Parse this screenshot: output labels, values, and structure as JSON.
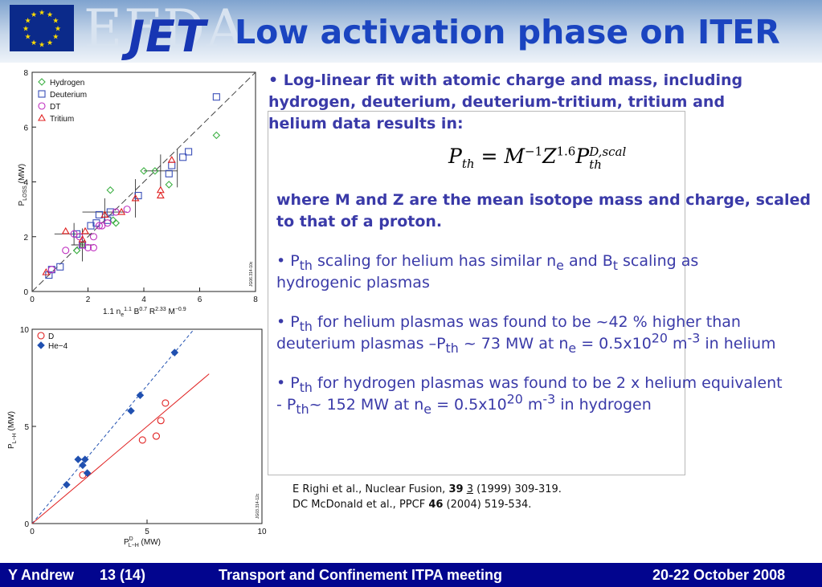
{
  "header": {
    "logo_efda": "EFDA",
    "logo_jet": "JET",
    "title": "Low activation phase on ITER"
  },
  "colors": {
    "title": "#1a44c0",
    "body_text": "#3a3aa8",
    "footer_bg": "#02058e",
    "hydrogen": "#3cb043",
    "deuterium": "#3a4fb8",
    "dt": "#c030c0",
    "tritium": "#e02020",
    "he4": "#2050b0"
  },
  "bullets": {
    "b1": "• Log-linear fit with atomic charge and mass, including hydrogen, deuterium, deuterium-tritium, tritium and helium data results in:",
    "formula": {
      "lhs": "P",
      "lhs_sub": "th",
      "eq": "=",
      "m": "M",
      "m_exp": "−1",
      "z": "Z",
      "z_exp": "1.6",
      "p": "P",
      "p_sup": "D,scal",
      "p_sub": "th"
    },
    "b2": "where M and Z are the mean isotope mass and charge, scaled to that of a proton.",
    "b3": {
      "bullet": "• P",
      "sub_th": "th",
      "t1": " scaling for helium has similar n",
      "sub_e": "e",
      "t2": " and B",
      "sub_t": "t",
      "t3": " scaling as hydrogenic plasmas"
    },
    "b4": {
      "bullet": "• P",
      "sub_th": "th",
      "t1": " for helium plasmas was found to be ~42 % higher than deuterium plasmas –P",
      "sub_th2": "th",
      "t2": " ~ 73 MW at n",
      "sub_e": "e",
      "t3": " = 0.5x10",
      "sup_20": "20",
      "t4": " m",
      "sup_m3": "-3",
      "t5": " in helium"
    },
    "b5": {
      "bullet": "• P",
      "sub_th": "th",
      "t1": " for hydrogen plasmas was found to be 2 x helium equivalent - P",
      "sub_th2": "th",
      "t2": "~ 152 MW at n",
      "sub_e": "e",
      "t3": " = 0.5x10",
      "sup_20": "20",
      "t4": " m",
      "sup_m3": "-3",
      "t5": " in hydrogen"
    }
  },
  "refs": {
    "r1_a": "E Righi et al., Nuclear Fusion, ",
    "r1_vol": "39",
    "r1_issue": "3",
    "r1_b": " (1999) 309-319.",
    "r2_a": "DC McDonald et al., PPCF ",
    "r2_vol": "46",
    "r2_b": " (2004) 519-534."
  },
  "footer": {
    "author": "Y Andrew",
    "page": "13 (14)",
    "meeting": "Transport and Confinement ITPA meeting",
    "date": "20-22 October 2008"
  },
  "chart_data": [
    {
      "type": "scatter",
      "xlabel": "1.1 n",
      "xlabel_sub1": "e",
      "xlabel_sup1": "1.1",
      "xlabel_b": " B",
      "xlabel_sup2": "0.7",
      "xlabel_c": " R",
      "xlabel_sup3": "2.33",
      "xlabel_d": " M",
      "xlabel_sup4": "−0.9",
      "ylabel": "P",
      "ylabel_sub": "LOSS",
      "ylabel_unit": " (MW)",
      "id_label": "JG06.314-10c",
      "xlim": [
        0,
        8
      ],
      "ylim": [
        0,
        8
      ],
      "xticks": [
        "0",
        "2",
        "4",
        "6",
        "8"
      ],
      "yticks": [
        "0",
        "2",
        "4",
        "6",
        "8"
      ],
      "legend": [
        "Hydrogen",
        "Deuterium",
        "DT",
        "Tritium"
      ],
      "series": [
        {
          "name": "Hydrogen",
          "marker": "diamond",
          "x": [
            6.6,
            4.4,
            4.0,
            4.9,
            2.8,
            3.0,
            2.9,
            1.8,
            1.6
          ],
          "y": [
            5.7,
            4.4,
            4.4,
            3.9,
            3.7,
            2.5,
            2.6,
            1.7,
            1.5
          ]
        },
        {
          "name": "Deuterium",
          "marker": "square",
          "x": [
            6.6,
            5.6,
            5.4,
            5.0,
            4.9,
            3.8,
            2.8,
            2.4,
            2.3,
            2.7,
            2.1,
            1.6,
            1.8,
            1.0,
            0.7,
            0.6
          ],
          "y": [
            7.1,
            5.1,
            4.9,
            4.6,
            4.3,
            3.5,
            2.9,
            2.8,
            2.5,
            2.6,
            2.4,
            2.1,
            1.7,
            0.9,
            0.8,
            0.6
          ]
        },
        {
          "name": "DT",
          "marker": "circle",
          "x": [
            3.4,
            3.0,
            2.7,
            2.5,
            2.4,
            2.2,
            2.2,
            2.0,
            1.7,
            1.8,
            1.5,
            1.2,
            0.7
          ],
          "y": [
            3.0,
            2.9,
            2.5,
            2.4,
            2.4,
            2.0,
            1.6,
            1.6,
            2.0,
            1.7,
            2.1,
            1.5,
            0.8
          ]
        },
        {
          "name": "Tritium",
          "marker": "triangle",
          "x": [
            5.0,
            4.6,
            4.6,
            3.7,
            3.2,
            2.6,
            1.9,
            1.8,
            1.2,
            0.5
          ],
          "y": [
            4.8,
            3.7,
            3.5,
            3.4,
            2.9,
            2.8,
            2.2,
            1.9,
            2.2,
            0.7
          ]
        }
      ],
      "fit_line": [
        [
          0,
          0
        ],
        [
          8,
          8
        ]
      ]
    },
    {
      "type": "scatter",
      "xlabel": "P",
      "xlabel_sup": "D",
      "xlabel_sub": "L−H",
      "xlabel_unit": " (MW)",
      "ylabel": "P",
      "ylabel_sub": "L−H",
      "ylabel_unit": " (MW)",
      "id_label": "JG03.314-12c",
      "xlim": [
        0,
        10
      ],
      "ylim": [
        0,
        10
      ],
      "xticks": [
        "0",
        "5",
        "10"
      ],
      "yticks": [
        "0",
        "5",
        "10"
      ],
      "legend": [
        "D",
        "He−4"
      ],
      "series": [
        {
          "name": "D",
          "marker": "circle",
          "x": [
            2.2,
            4.8,
            5.4,
            5.6,
            5.8
          ],
          "y": [
            2.5,
            4.3,
            4.5,
            5.3,
            6.2
          ]
        },
        {
          "name": "He−4",
          "marker": "diamond",
          "x": [
            1.5,
            2.0,
            2.3,
            2.2,
            2.4,
            4.3,
            4.7,
            6.2
          ],
          "y": [
            2.0,
            3.3,
            3.3,
            3.0,
            2.6,
            5.8,
            6.6,
            8.8
          ]
        }
      ],
      "fit_lines": [
        {
          "series": "He−4",
          "style": "dashed",
          "slope": 1.42
        },
        {
          "series": "D",
          "style": "solid",
          "slope": 1.0
        }
      ]
    }
  ]
}
